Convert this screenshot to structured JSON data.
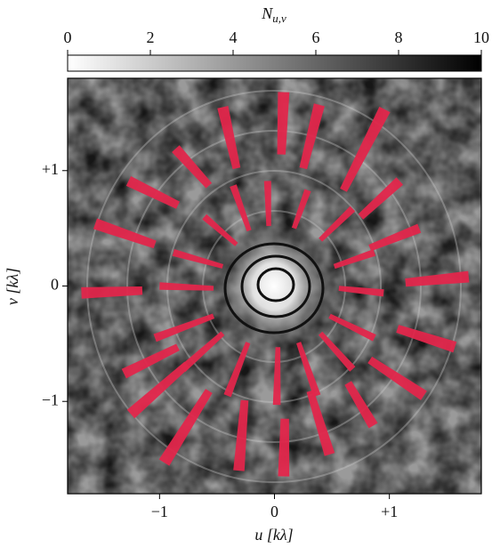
{
  "chart_data": {
    "type": "heatmap",
    "colorbar": {
      "label": "N",
      "label_sub": "u,v",
      "lim": [
        0,
        10
      ],
      "ticks": [
        0,
        2,
        4,
        6,
        8,
        10
      ]
    },
    "xlabel": "u [kλ]",
    "ylabel": "v [kλ]",
    "xlim": [
      -1.8,
      1.8
    ],
    "ylim": [
      -1.8,
      1.8
    ],
    "xticks": [
      {
        "value": -1,
        "label": "−1"
      },
      0,
      {
        "value": 1,
        "label": "+1"
      }
    ],
    "yticks": [
      {
        "value": -1,
        "label": "−1"
      },
      0,
      {
        "value": 1,
        "label": "+1"
      }
    ],
    "track_color": "#e2264b",
    "tracks": [
      {
        "u": [
          -1.68,
          -1.15
        ],
        "v": [
          -0.06,
          -0.04
        ]
      },
      {
        "u": [
          -1.56,
          -1.04
        ],
        "v": [
          0.54,
          0.36
        ]
      },
      {
        "u": [
          -1.27,
          -0.84
        ],
        "v": [
          0.91,
          0.7
        ]
      },
      {
        "u": [
          -0.86,
          -0.57
        ],
        "v": [
          1.19,
          0.87
        ]
      },
      {
        "u": [
          -0.45,
          -0.33
        ],
        "v": [
          1.55,
          1.02
        ]
      },
      {
        "u": [
          0.08,
          0.06
        ],
        "v": [
          1.68,
          1.14
        ]
      },
      {
        "u": [
          0.39,
          0.25
        ],
        "v": [
          1.57,
          1.02
        ]
      },
      {
        "u": [
          0.96,
          0.6
        ],
        "v": [
          1.53,
          0.83
        ]
      },
      {
        "u": [
          1.09,
          0.75
        ],
        "v": [
          0.91,
          0.6
        ]
      },
      {
        "u": [
          1.26,
          0.83
        ],
        "v": [
          0.5,
          0.33
        ]
      },
      {
        "u": [
          1.69,
          1.14
        ],
        "v": [
          0.08,
          0.03
        ]
      },
      {
        "u": [
          1.57,
          1.07
        ],
        "v": [
          -0.53,
          -0.37
        ]
      },
      {
        "u": [
          1.3,
          0.83
        ],
        "v": [
          -0.95,
          -0.64
        ]
      },
      {
        "u": [
          0.86,
          0.64
        ],
        "v": [
          -1.21,
          -0.84
        ]
      },
      {
        "u": [
          0.48,
          0.31
        ],
        "v": [
          -1.46,
          -0.91
        ]
      },
      {
        "u": [
          0.08,
          0.09
        ],
        "v": [
          -1.65,
          -1.15
        ]
      },
      {
        "u": [
          -0.31,
          -0.26
        ],
        "v": [
          -1.6,
          -0.99
        ]
      },
      {
        "u": [
          -0.96,
          -0.57
        ],
        "v": [
          -1.53,
          -0.91
        ]
      },
      {
        "u": [
          -1.25,
          -0.76
        ],
        "v": [
          -1.11,
          -0.68
        ]
      },
      {
        "u": [
          -1.31,
          -0.84
        ],
        "v": [
          -0.76,
          -0.53
        ]
      },
      {
        "u": [
          -1.0,
          -0.53
        ],
        "v": [
          0.0,
          -0.02
        ]
      },
      {
        "u": [
          -0.88,
          -0.45
        ],
        "v": [
          0.29,
          0.17
        ]
      },
      {
        "u": [
          -0.61,
          -0.33
        ],
        "v": [
          0.6,
          0.36
        ]
      },
      {
        "u": [
          -0.36,
          -0.22
        ],
        "v": [
          0.87,
          0.48
        ]
      },
      {
        "u": [
          -0.06,
          -0.05
        ],
        "v": [
          0.91,
          0.52
        ]
      },
      {
        "u": [
          0.29,
          0.17
        ],
        "v": [
          0.83,
          0.5
        ]
      },
      {
        "u": [
          0.68,
          0.4
        ],
        "v": [
          0.67,
          0.4
        ]
      },
      {
        "u": [
          0.87,
          0.52
        ],
        "v": [
          0.29,
          0.17
        ]
      },
      {
        "u": [
          0.95,
          0.56
        ],
        "v": [
          -0.06,
          -0.02
        ]
      },
      {
        "u": [
          0.87,
          0.48
        ],
        "v": [
          -0.45,
          -0.26
        ]
      },
      {
        "u": [
          0.68,
          0.4
        ],
        "v": [
          -0.72,
          -0.41
        ]
      },
      {
        "u": [
          0.37,
          0.21
        ],
        "v": [
          -0.95,
          -0.49
        ]
      },
      {
        "u": [
          0.02,
          0.03
        ],
        "v": [
          -1.03,
          -0.53
        ]
      },
      {
        "u": [
          -0.41,
          -0.23
        ],
        "v": [
          -0.95,
          -0.49
        ]
      },
      {
        "u": [
          -0.8,
          -0.45
        ],
        "v": [
          -0.72,
          -0.41
        ]
      },
      {
        "u": [
          -1.04,
          -0.53
        ],
        "v": [
          -0.45,
          -0.26
        ]
      }
    ]
  }
}
